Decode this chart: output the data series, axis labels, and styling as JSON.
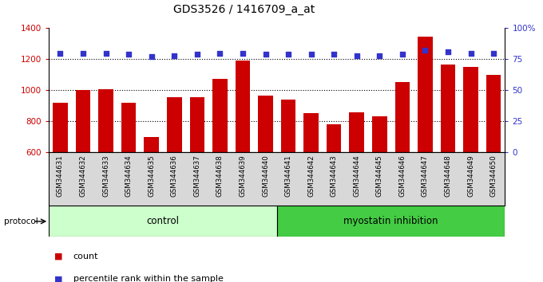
{
  "title": "GDS3526 / 1416709_a_at",
  "samples": [
    "GSM344631",
    "GSM344632",
    "GSM344633",
    "GSM344634",
    "GSM344635",
    "GSM344636",
    "GSM344637",
    "GSM344638",
    "GSM344639",
    "GSM344640",
    "GSM344641",
    "GSM344642",
    "GSM344643",
    "GSM344644",
    "GSM344645",
    "GSM344646",
    "GSM344647",
    "GSM344648",
    "GSM344649",
    "GSM344650"
  ],
  "counts": [
    920,
    1000,
    1005,
    920,
    700,
    955,
    955,
    1075,
    1190,
    965,
    940,
    855,
    780,
    860,
    830,
    1055,
    1345,
    1165,
    1150,
    1100
  ],
  "percentile_ranks": [
    80,
    80,
    80,
    79,
    77,
    78,
    79,
    80,
    80,
    79,
    79,
    79,
    79,
    78,
    78,
    79,
    82,
    81,
    80,
    80
  ],
  "bar_color": "#cc0000",
  "dot_color": "#3333cc",
  "control_count": 10,
  "myostatin_count": 10,
  "ylim_left": [
    600,
    1400
  ],
  "ylim_right": [
    0,
    100
  ],
  "yticks_left": [
    600,
    800,
    1000,
    1200,
    1400
  ],
  "yticks_right": [
    0,
    25,
    50,
    75,
    100
  ],
  "grid_values": [
    800,
    1000,
    1200
  ],
  "control_color": "#ccffcc",
  "myostatin_color": "#44cc44",
  "left_tick_color": "#cc0000",
  "right_tick_color": "#3333cc"
}
